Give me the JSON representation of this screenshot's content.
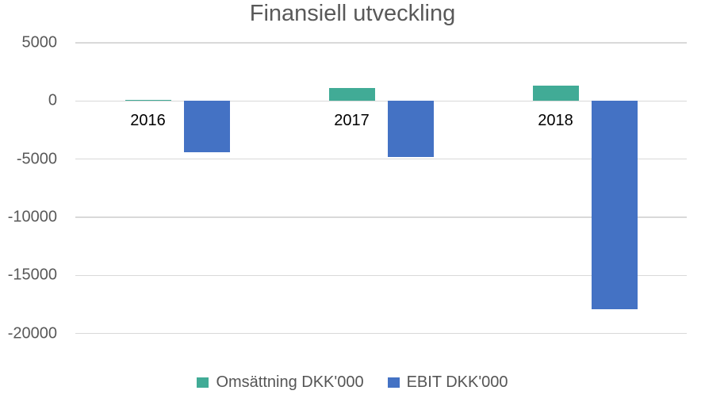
{
  "title": "Finansiell utveckling",
  "chart_data": {
    "type": "bar",
    "title": "Finansiell utveckling",
    "categories": [
      "2016",
      "2017",
      "2018"
    ],
    "series": [
      {
        "name": "Omsättning DKK'000",
        "color": "#41AB96",
        "values": [
          100,
          1100,
          1300
        ]
      },
      {
        "name": "EBIT DKK'000",
        "color": "#4472C4",
        "values": [
          -4400,
          -4800,
          -17900
        ]
      }
    ],
    "yticks": [
      5000,
      0,
      -5000,
      -10000,
      -15000,
      -20000
    ],
    "ylim": [
      -20000,
      5000
    ],
    "grid": "horizontal",
    "grid_color": "#D9D9D9",
    "axis_text_color": "#595959",
    "category_label_color": "#000000",
    "legend_position": "bottom",
    "background": "#FFFFFF"
  }
}
